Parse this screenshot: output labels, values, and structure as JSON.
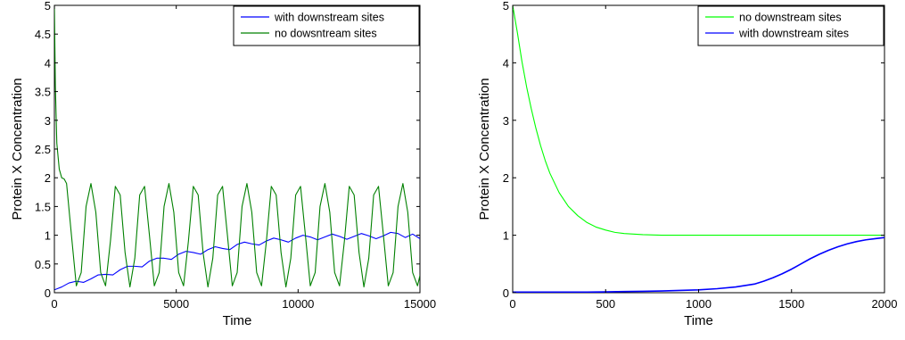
{
  "chart_data": [
    {
      "type": "line",
      "title": "",
      "xlabel": "Time",
      "ylabel": "Protein X  Concentration",
      "xlim": [
        0,
        15000
      ],
      "ylim": [
        0,
        5
      ],
      "xticks": [
        0,
        5000,
        10000,
        15000
      ],
      "xtick_labels": [
        "0",
        "5000",
        "10000",
        "15000"
      ],
      "yticks": [
        0,
        0.5,
        1,
        1.5,
        2,
        2.5,
        3,
        3.5,
        4,
        4.5,
        5
      ],
      "ytick_labels": [
        "0",
        "0.5",
        "1",
        "1.5",
        "2",
        "2.5",
        "3",
        "3.5",
        "4",
        "4.5",
        "5"
      ],
      "grid": false,
      "legend_position": "top-right",
      "series": [
        {
          "name": "with downstream sites",
          "color": "#0000ff",
          "x": [
            0,
            300,
            600,
            900,
            1200,
            1500,
            1800,
            2100,
            2400,
            2700,
            3000,
            3300,
            3600,
            3900,
            4200,
            4500,
            4800,
            5100,
            5400,
            5700,
            6000,
            6300,
            6600,
            6900,
            7200,
            7500,
            7800,
            8100,
            8400,
            8700,
            9000,
            9300,
            9600,
            9900,
            10200,
            10500,
            10800,
            11100,
            11400,
            11700,
            12000,
            12300,
            12600,
            12900,
            13200,
            13500,
            13800,
            14100,
            14400,
            14700,
            15000
          ],
          "y": [
            0.05,
            0.1,
            0.17,
            0.2,
            0.18,
            0.24,
            0.31,
            0.32,
            0.31,
            0.4,
            0.46,
            0.46,
            0.45,
            0.55,
            0.6,
            0.6,
            0.58,
            0.67,
            0.72,
            0.7,
            0.67,
            0.75,
            0.8,
            0.77,
            0.75,
            0.84,
            0.88,
            0.85,
            0.83,
            0.9,
            0.95,
            0.92,
            0.88,
            0.95,
            1.0,
            0.97,
            0.92,
            0.97,
            1.02,
            0.98,
            0.93,
            0.98,
            1.03,
            0.99,
            0.94,
            0.99,
            1.05,
            1.03,
            0.96,
            1.02,
            0.94
          ]
        },
        {
          "name": "no dowsntream sites",
          "color": "#008000",
          "x": [
            0,
            40,
            100,
            200,
            300,
            400,
            500,
            700,
            900,
            1100,
            1300,
            1500,
            1700,
            1900,
            2100,
            2300,
            2500,
            2700,
            2900,
            3100,
            3300,
            3500,
            3700,
            3900,
            4100,
            4300,
            4500,
            4700,
            4900,
            5100,
            5300,
            5500,
            5700,
            5900,
            6100,
            6300,
            6500,
            6700,
            6900,
            7100,
            7300,
            7500,
            7700,
            7900,
            8100,
            8300,
            8500,
            8700,
            8900,
            9100,
            9300,
            9500,
            9700,
            9900,
            10100,
            10300,
            10500,
            10700,
            10900,
            11100,
            11300,
            11500,
            11700,
            11900,
            12100,
            12300,
            12500,
            12700,
            12900,
            13100,
            13300,
            13500,
            13700,
            13900,
            14100,
            14300,
            14500,
            14700,
            14900,
            15000
          ],
          "y": [
            5.0,
            3.6,
            2.6,
            2.15,
            2.0,
            1.98,
            1.9,
            1.0,
            0.12,
            0.35,
            1.5,
            1.9,
            1.4,
            0.35,
            0.12,
            0.9,
            1.85,
            1.7,
            0.7,
            0.1,
            0.6,
            1.7,
            1.85,
            1.0,
            0.12,
            0.35,
            1.5,
            1.9,
            1.4,
            0.35,
            0.12,
            0.9,
            1.85,
            1.7,
            0.7,
            0.1,
            0.6,
            1.7,
            1.85,
            1.0,
            0.12,
            0.35,
            1.5,
            1.9,
            1.4,
            0.35,
            0.12,
            0.9,
            1.85,
            1.7,
            0.7,
            0.1,
            0.6,
            1.7,
            1.85,
            1.0,
            0.12,
            0.35,
            1.5,
            1.9,
            1.4,
            0.35,
            0.12,
            0.9,
            1.85,
            1.7,
            0.7,
            0.1,
            0.6,
            1.7,
            1.85,
            1.0,
            0.12,
            0.35,
            1.5,
            1.9,
            1.4,
            0.35,
            0.12,
            0.3
          ]
        }
      ]
    },
    {
      "type": "line",
      "title": "",
      "xlabel": "Time",
      "ylabel": "Protein X Concentration",
      "xlim": [
        0,
        2000
      ],
      "ylim": [
        0,
        5
      ],
      "xticks": [
        0,
        500,
        1000,
        1500,
        2000
      ],
      "xtick_labels": [
        "0",
        "500",
        "1000",
        "1500",
        "2000"
      ],
      "yticks": [
        0,
        1,
        2,
        3,
        4,
        5
      ],
      "ytick_labels": [
        "0",
        "1",
        "2",
        "3",
        "4",
        "5"
      ],
      "grid": false,
      "legend_position": "top-right",
      "series": [
        {
          "name": "no downstream sites",
          "color": "#00ff00",
          "x": [
            0,
            25,
            50,
            75,
            100,
            125,
            150,
            175,
            200,
            250,
            300,
            350,
            400,
            450,
            500,
            550,
            600,
            700,
            800,
            900,
            1000,
            1200,
            1400,
            1600,
            1800,
            2000
          ],
          "y": [
            5.0,
            4.53,
            4.02,
            3.58,
            3.2,
            2.86,
            2.56,
            2.3,
            2.08,
            1.74,
            1.5,
            1.34,
            1.22,
            1.14,
            1.09,
            1.05,
            1.03,
            1.01,
            1.0,
            1.0,
            1.0,
            1.0,
            1.0,
            1.0,
            1.0,
            1.0
          ]
        },
        {
          "name": "with downstream sites",
          "color": "#0000ff",
          "x": [
            0,
            100,
            200,
            300,
            400,
            500,
            600,
            700,
            800,
            900,
            1000,
            1100,
            1200,
            1300,
            1350,
            1400,
            1450,
            1500,
            1550,
            1600,
            1650,
            1700,
            1750,
            1800,
            1850,
            1900,
            1950,
            2000
          ],
          "y": [
            0.01,
            0.01,
            0.01,
            0.01,
            0.01,
            0.015,
            0.02,
            0.025,
            0.03,
            0.04,
            0.05,
            0.07,
            0.1,
            0.15,
            0.2,
            0.26,
            0.33,
            0.41,
            0.5,
            0.59,
            0.67,
            0.74,
            0.8,
            0.85,
            0.89,
            0.92,
            0.94,
            0.96
          ]
        }
      ]
    }
  ]
}
